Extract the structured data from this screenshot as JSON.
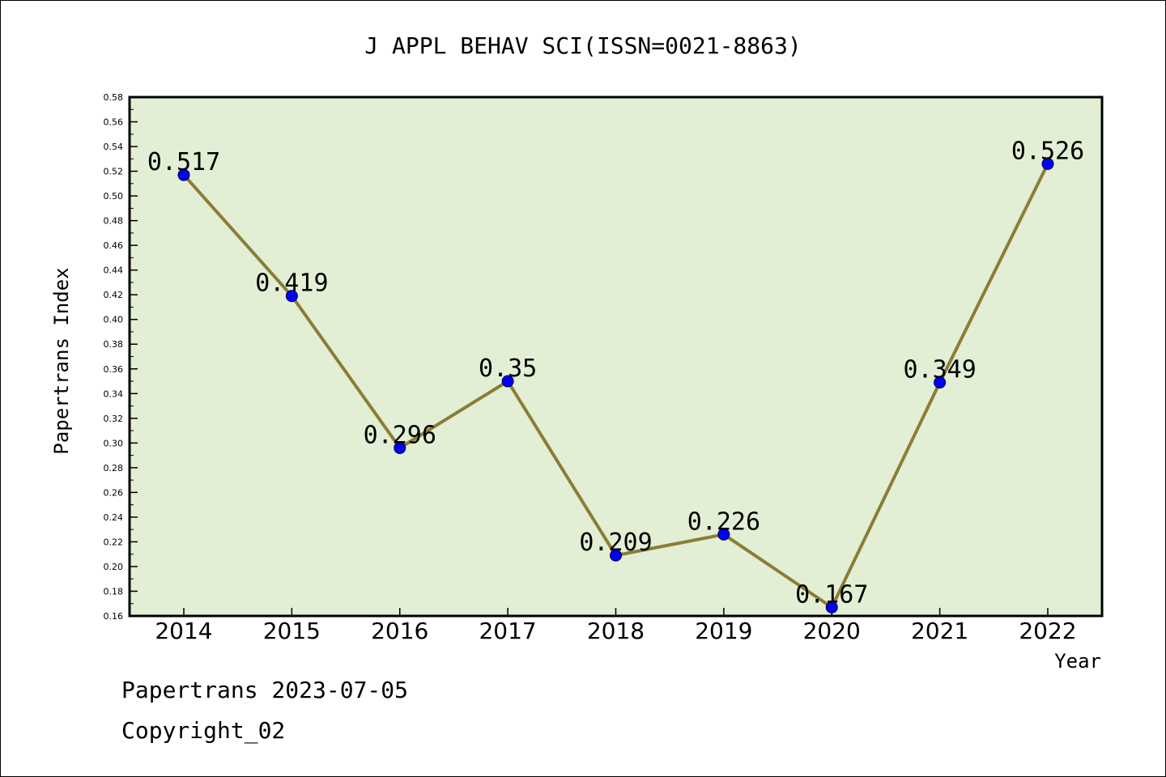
{
  "chart_data": {
    "type": "line",
    "title": "J APPL BEHAV SCI(ISSN=0021-8863)",
    "xlabel": "Year",
    "ylabel": "Papertrans Index",
    "categories": [
      "2014",
      "2015",
      "2016",
      "2017",
      "2018",
      "2019",
      "2020",
      "2021",
      "2022"
    ],
    "values": [
      0.517,
      0.419,
      0.296,
      0.35,
      0.209,
      0.226,
      0.167,
      0.349,
      0.526
    ],
    "data_labels": [
      "0.517",
      "0.419",
      "0.296",
      "0.35",
      "0.209",
      "0.226",
      "0.167",
      "0.349",
      "0.526"
    ],
    "ylim": [
      0.16,
      0.58
    ],
    "yticks": [
      "0.16",
      "0.18",
      "0.20",
      "0.22",
      "0.24",
      "0.26",
      "0.28",
      "0.30",
      "0.32",
      "0.34",
      "0.36",
      "0.38",
      "0.40",
      "0.42",
      "0.44",
      "0.46",
      "0.48",
      "0.50",
      "0.52",
      "0.54",
      "0.56",
      "0.58"
    ],
    "grid": false,
    "colors": {
      "plot_background": "#e2efd4",
      "line": "#8b7d36",
      "marker": "#0000ff"
    }
  },
  "footer": {
    "line1": "Papertrans 2023-07-05",
    "line2": "Copyright_02"
  }
}
